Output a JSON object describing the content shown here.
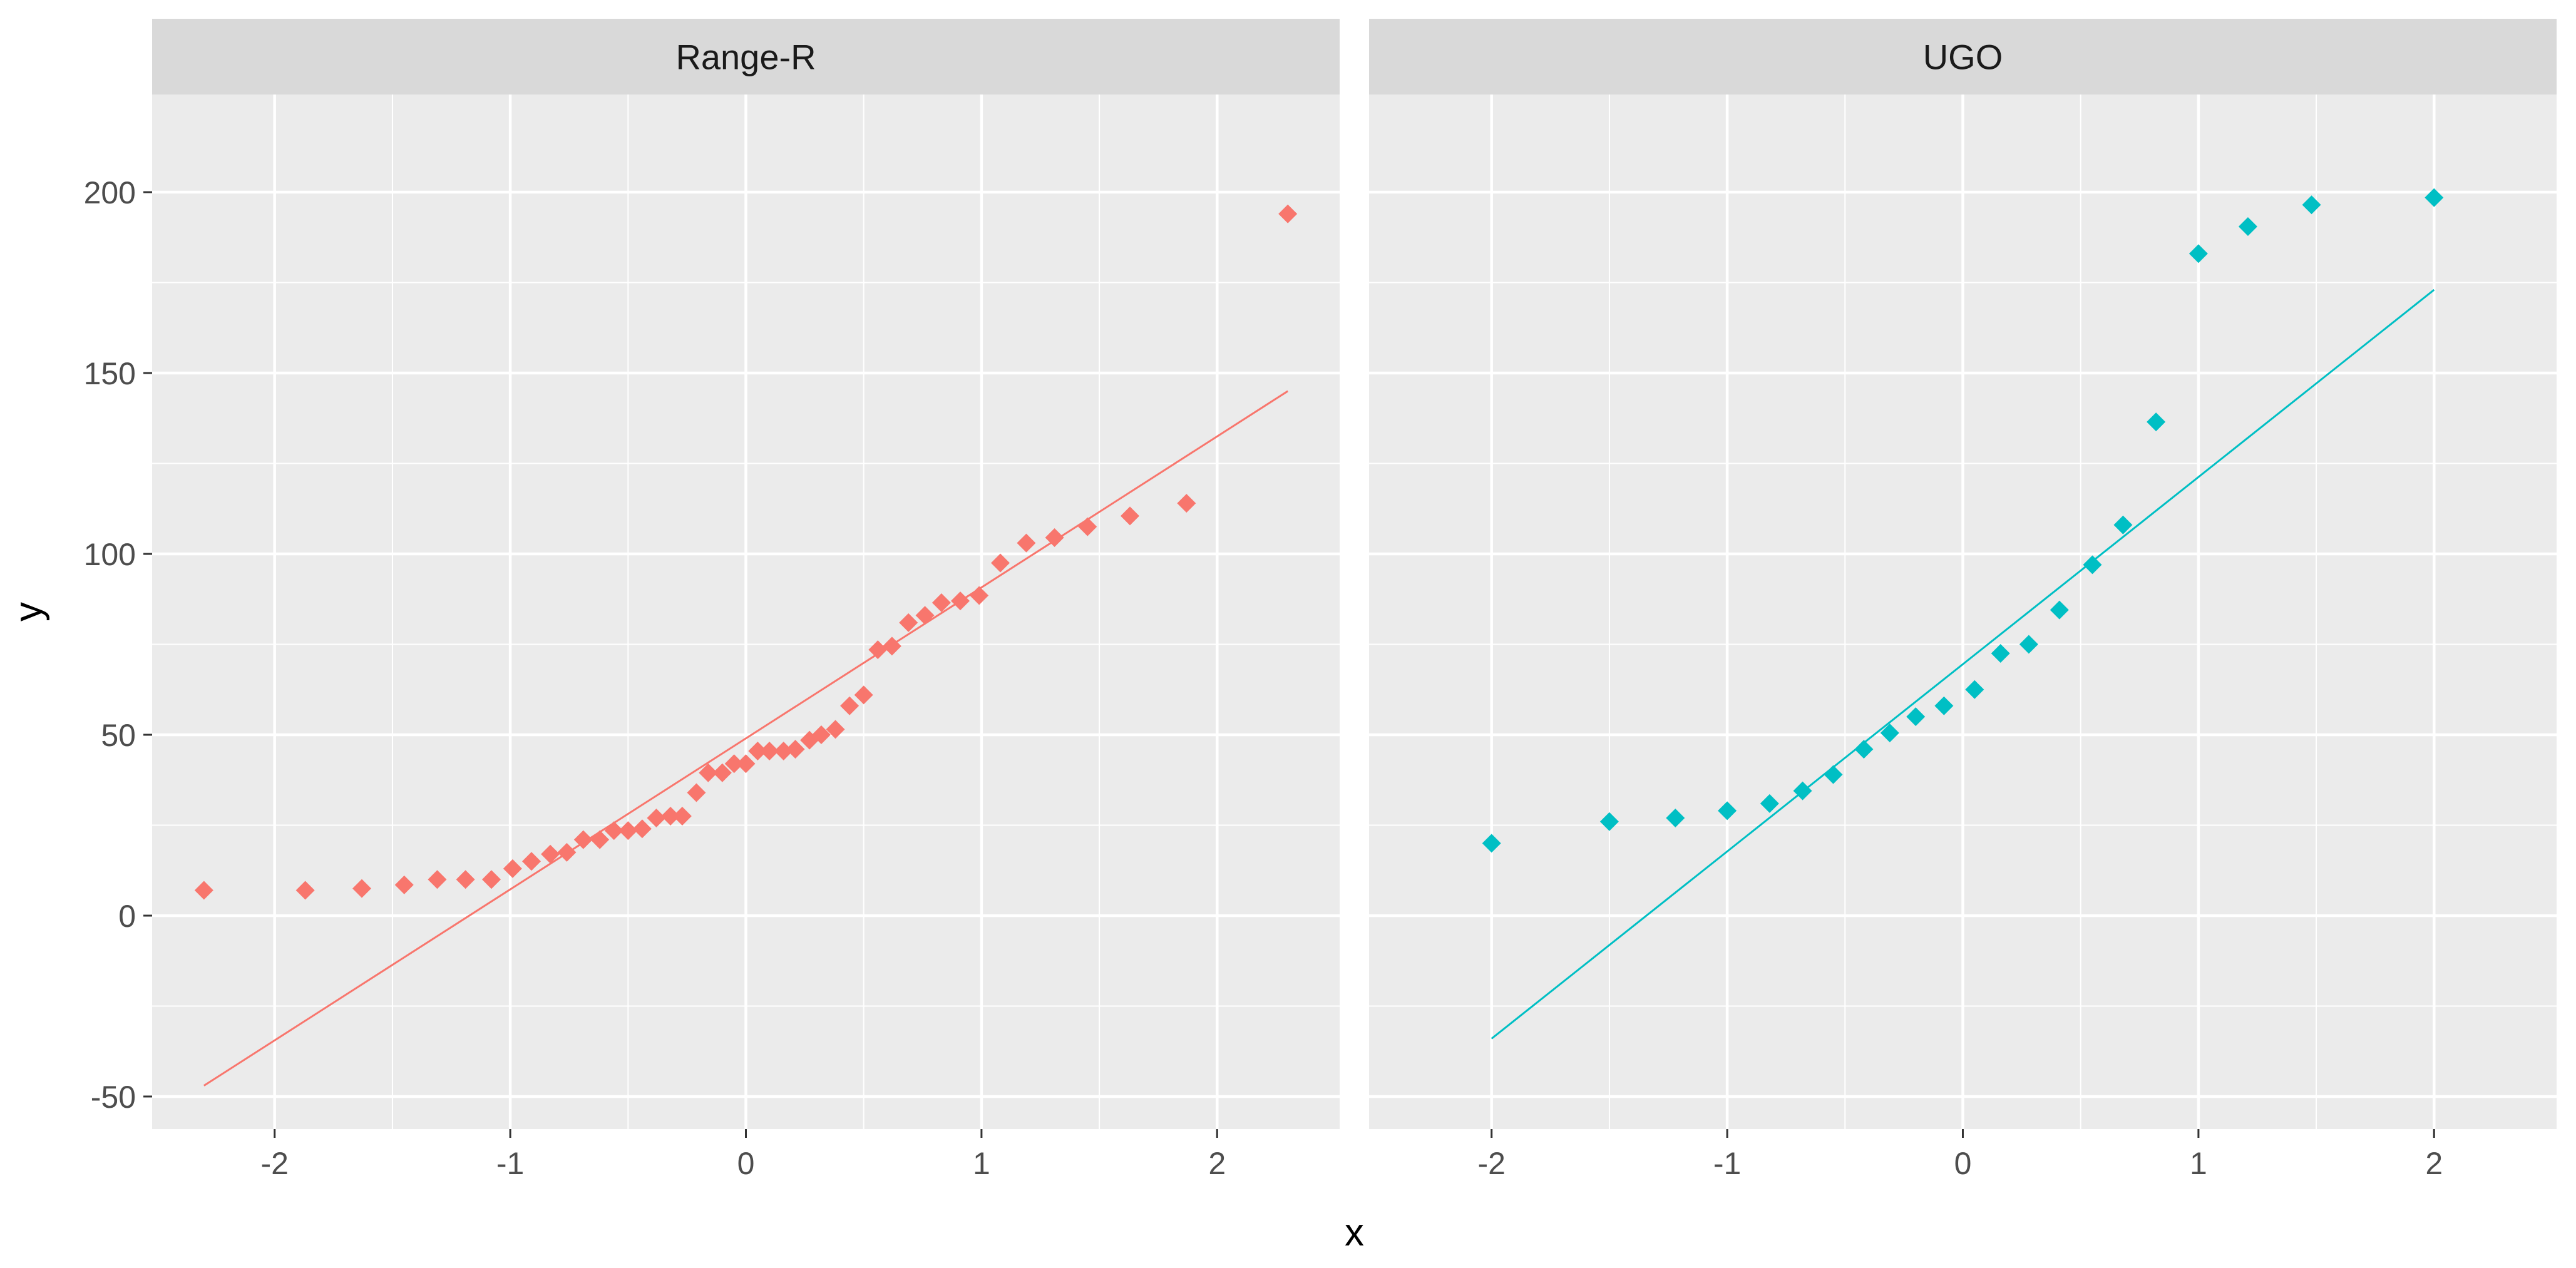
{
  "chart_data": {
    "type": "scatter",
    "xlabel": "x",
    "ylabel": "y",
    "xlim": [
      -2.52,
      2.52
    ],
    "ylim": [
      -59,
      227
    ],
    "x_ticks": [
      -2,
      -1,
      0,
      1,
      2
    ],
    "x_tick_labels": [
      "-2",
      "-1",
      "0",
      "1",
      "2"
    ],
    "y_ticks": [
      -50,
      0,
      50,
      100,
      150,
      200
    ],
    "y_tick_labels": [
      "-50",
      "0",
      "50",
      "100",
      "150",
      "200"
    ],
    "grid": true,
    "legend": "none",
    "panels": [
      {
        "label": "Range-R",
        "color": "#F8766D",
        "reference_line": {
          "x": [
            -2.3,
            2.3
          ],
          "y": [
            -47,
            145
          ]
        },
        "points": [
          [
            -2.3,
            7
          ],
          [
            -1.87,
            7
          ],
          [
            -1.63,
            7.5
          ],
          [
            -1.45,
            8.5
          ],
          [
            -1.31,
            10
          ],
          [
            -1.19,
            10
          ],
          [
            -1.08,
            10
          ],
          [
            -0.99,
            13
          ],
          [
            -0.91,
            15
          ],
          [
            -0.83,
            17
          ],
          [
            -0.76,
            17.5
          ],
          [
            -0.69,
            21
          ],
          [
            -0.62,
            21
          ],
          [
            -0.56,
            23.5
          ],
          [
            -0.5,
            23.5
          ],
          [
            -0.44,
            24
          ],
          [
            -0.38,
            27
          ],
          [
            -0.32,
            27.5
          ],
          [
            -0.27,
            27.5
          ],
          [
            -0.21,
            34
          ],
          [
            -0.16,
            39.5
          ],
          [
            -0.1,
            39.5
          ],
          [
            -0.05,
            42
          ],
          [
            0.0,
            42
          ],
          [
            0.05,
            45.5
          ],
          [
            0.1,
            45.5
          ],
          [
            0.16,
            45.5
          ],
          [
            0.21,
            46
          ],
          [
            0.27,
            48.5
          ],
          [
            0.32,
            50
          ],
          [
            0.38,
            51.5
          ],
          [
            0.44,
            58
          ],
          [
            0.5,
            61
          ],
          [
            0.56,
            73.5
          ],
          [
            0.62,
            74.5
          ],
          [
            0.69,
            81
          ],
          [
            0.76,
            83
          ],
          [
            0.83,
            86.5
          ],
          [
            0.91,
            87
          ],
          [
            0.99,
            88.5
          ],
          [
            1.08,
            97.5
          ],
          [
            1.19,
            103
          ],
          [
            1.31,
            104.5
          ],
          [
            1.45,
            107.5
          ],
          [
            1.63,
            110.5
          ],
          [
            1.87,
            114
          ],
          [
            2.3,
            194
          ]
        ]
      },
      {
        "label": "UGO",
        "color": "#00BFC4",
        "reference_line": {
          "x": [
            -2.0,
            2.0
          ],
          "y": [
            -34,
            173
          ]
        },
        "points": [
          [
            -2.0,
            20
          ],
          [
            -1.5,
            26
          ],
          [
            -1.22,
            27
          ],
          [
            -1.0,
            29
          ],
          [
            -0.82,
            31
          ],
          [
            -0.68,
            34.5
          ],
          [
            -0.55,
            39
          ],
          [
            -0.42,
            46
          ],
          [
            -0.31,
            50.5
          ],
          [
            -0.2,
            55
          ],
          [
            -0.08,
            58
          ],
          [
            0.05,
            62.5
          ],
          [
            0.16,
            72.5
          ],
          [
            0.28,
            75
          ],
          [
            0.41,
            84.5
          ],
          [
            0.55,
            97
          ],
          [
            0.68,
            108
          ],
          [
            0.82,
            136.5
          ],
          [
            1.0,
            183
          ],
          [
            1.21,
            190.5
          ],
          [
            1.48,
            196.5
          ],
          [
            2.0,
            198.5
          ]
        ]
      }
    ]
  }
}
